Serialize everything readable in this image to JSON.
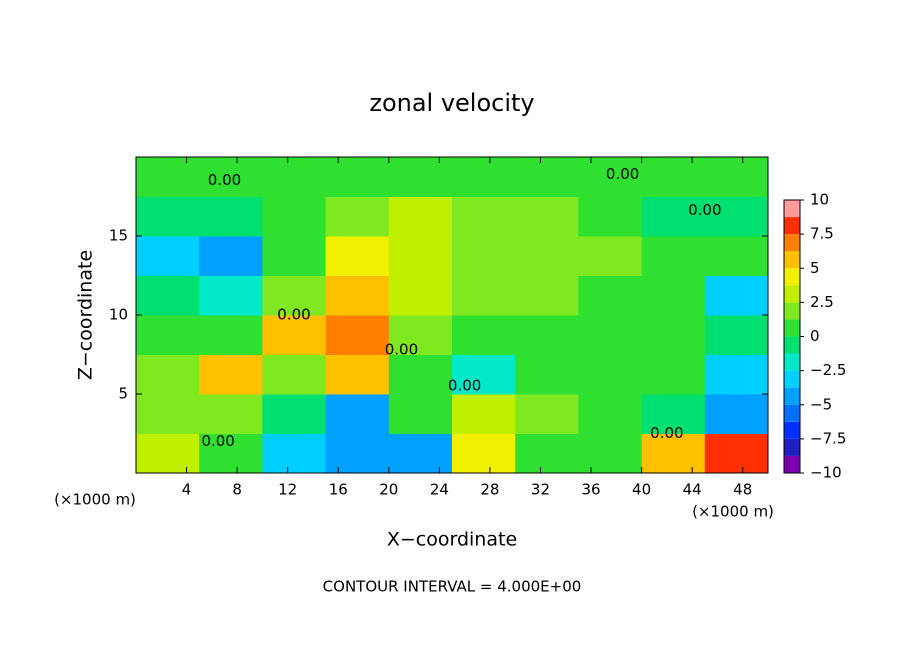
{
  "chart_data": {
    "type": "contour",
    "title": "zonal velocity",
    "x_label": "X−coordinate",
    "y_label": "Z−coordinate",
    "x_unit_left": "(×1000 m)",
    "x_unit_right": "(×1000 m)",
    "footer": "CONTOUR INTERVAL = 4.000E+00",
    "xlim": [
      0,
      50
    ],
    "ylim": [
      0,
      20
    ],
    "xticks": [
      4,
      8,
      12,
      16,
      20,
      24,
      28,
      32,
      36,
      40,
      44,
      48
    ],
    "yticks": [
      5,
      10,
      15
    ],
    "z": [
      [
        3,
        0,
        -3,
        -5,
        -4,
        4,
        1,
        0.5,
        5,
        8
      ],
      [
        2,
        2,
        -1,
        -4,
        1,
        3,
        2,
        1,
        -1,
        -5
      ],
      [
        2,
        6,
        2,
        6,
        0,
        -2,
        0,
        1,
        0,
        -3
      ],
      [
        1,
        1,
        6,
        7,
        2,
        1,
        0.5,
        0.5,
        1,
        -1
      ],
      [
        -1,
        -1.5,
        2,
        6,
        3,
        2,
        2,
        1,
        0.5,
        -3
      ],
      [
        -3,
        -4,
        0.5,
        4,
        3,
        2,
        2,
        1.5,
        1,
        0
      ],
      [
        -1,
        -1,
        0,
        2,
        2.5,
        2,
        1.5,
        0.5,
        -0.5,
        -1
      ],
      [
        0.5,
        0.5,
        0.5,
        1,
        1,
        1,
        0.5,
        0.5,
        0.5,
        0.5
      ]
    ],
    "levels": [
      -10,
      -8.75,
      -7.5,
      -6.25,
      -5,
      -3.75,
      -2.5,
      -1.25,
      0,
      1.25,
      2.5,
      3.75,
      5,
      6.25,
      7.5,
      8.75,
      10
    ],
    "colors": [
      "#7a00b0",
      "#2020c0",
      "#0030ff",
      "#0070ff",
      "#00a0ff",
      "#00d0ff",
      "#00e8c8",
      "#00e070",
      "#30e030",
      "#80e820",
      "#c0f000",
      "#f0f000",
      "#ffc000",
      "#ff8000",
      "#ff3000",
      "#ff9a9a"
    ],
    "colorbar_ticks": [
      10,
      7.5,
      5,
      2.5,
      0,
      {
        "value": -2.5,
        "label": "−2.5"
      },
      {
        "value": -5,
        "label": "−5"
      },
      {
        "value": -7.5,
        "label": "−7.5"
      },
      {
        "value": -10,
        "label": "−10"
      }
    ],
    "annotations": [
      {
        "text": "0.00",
        "x": 7,
        "y": 18.5
      },
      {
        "text": "0.00",
        "x": 38.5,
        "y": 18.9
      },
      {
        "text": "0.00",
        "x": 45,
        "y": 16.6
      },
      {
        "text": "0.00",
        "x": 12.5,
        "y": 10
      },
      {
        "text": "0.00",
        "x": 21,
        "y": 7.8
      },
      {
        "text": "0.00",
        "x": 26,
        "y": 5.5
      },
      {
        "text": "0.00",
        "x": 6.5,
        "y": 2
      },
      {
        "text": "0.00",
        "x": 42,
        "y": 2.5
      }
    ]
  }
}
